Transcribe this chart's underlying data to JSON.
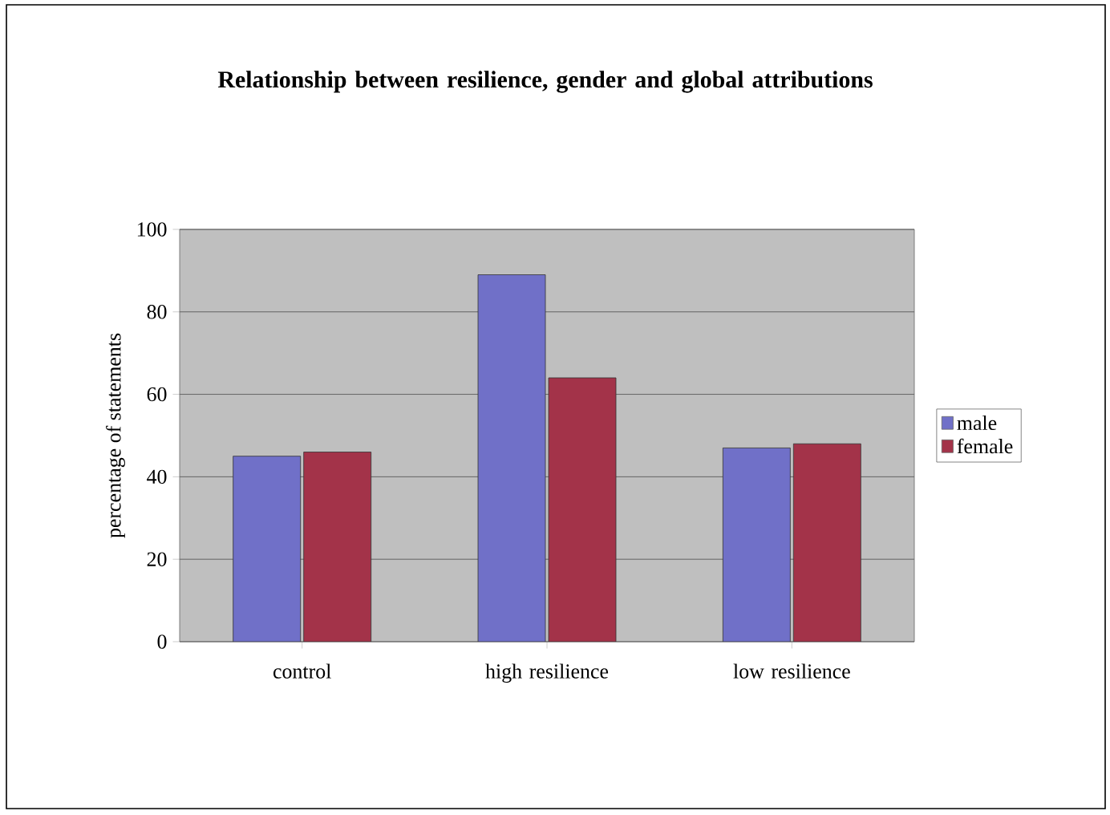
{
  "chart_data": {
    "type": "bar",
    "title": "Relationship between resilience, gender and global attributions",
    "ylabel": "percentage of statements",
    "categories": [
      "control",
      "high resilience",
      "low resilience"
    ],
    "series": [
      {
        "name": "male",
        "color": "#7070c8",
        "values": [
          45,
          89,
          47
        ]
      },
      {
        "name": "female",
        "color": "#a33349",
        "values": [
          46,
          64,
          48
        ]
      }
    ],
    "ylim": [
      0,
      100
    ],
    "yticks": [
      0,
      20,
      40,
      60,
      80,
      100
    ],
    "grid": "y",
    "legend": "right"
  }
}
